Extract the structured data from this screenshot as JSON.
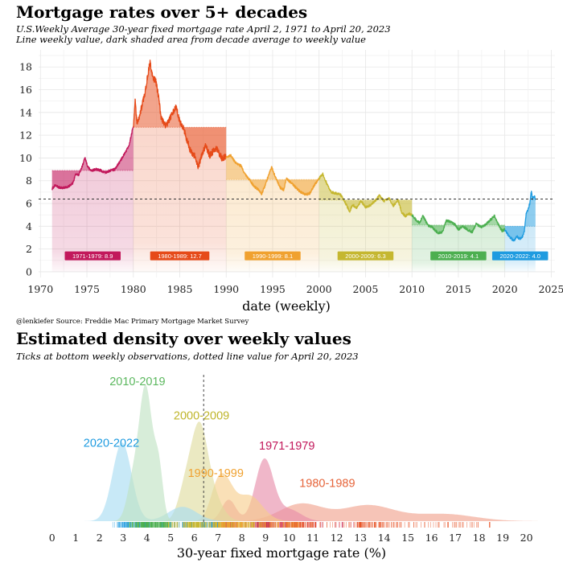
{
  "chart_data": [
    {
      "type": "area",
      "title": "Mortgage rates over 5+ decades",
      "subtitle_1": "U.S.Weekly Average 30-year fixed mortgage rate April 2, 1971 to April 20, 2023",
      "subtitle_2": "Line weekly value, dark shaded area from decade average to weekly value",
      "xlabel": "date (weekly)",
      "ylabel": "",
      "xlim": [
        1969.8,
        2025.4
      ],
      "ylim": [
        -0.5,
        19.5
      ],
      "x_ticks": [
        "1970",
        "1975",
        "1980",
        "1985",
        "1990",
        "1995",
        "2000",
        "2005",
        "2010",
        "2015",
        "2020",
        "2025"
      ],
      "y_ticks": [
        "0",
        "2",
        "4",
        "6",
        "8",
        "10",
        "12",
        "14",
        "16",
        "18"
      ],
      "reference_line": 6.39,
      "caption": "@lenkiefer Source: Freddie Mac Primary Mortgage Market Survey",
      "series": [
        {
          "name": "1971-1979",
          "label": "1971-1979:  8.9",
          "start": 1971.25,
          "end": 1980.0,
          "average": 8.9,
          "color": "#c2185b",
          "points": [
            [
              1971.25,
              7.3
            ],
            [
              1971.6,
              7.6
            ],
            [
              1972.0,
              7.4
            ],
            [
              1972.5,
              7.4
            ],
            [
              1973.0,
              7.45
            ],
            [
              1973.5,
              7.8
            ],
            [
              1973.8,
              8.6
            ],
            [
              1974.1,
              8.5
            ],
            [
              1974.5,
              9.3
            ],
            [
              1974.8,
              10.0
            ],
            [
              1975.1,
              9.2
            ],
            [
              1975.5,
              8.9
            ],
            [
              1976.0,
              9.0
            ],
            [
              1976.5,
              8.9
            ],
            [
              1977.0,
              8.7
            ],
            [
              1977.5,
              8.9
            ],
            [
              1978.0,
              9.0
            ],
            [
              1978.5,
              9.6
            ],
            [
              1979.0,
              10.3
            ],
            [
              1979.5,
              11.0
            ],
            [
              1980.0,
              12.8
            ]
          ]
        },
        {
          "name": "1980-1989",
          "label": "1980-1989:  12.7",
          "start": 1980.0,
          "end": 1990.0,
          "average": 12.7,
          "color": "#e64a19",
          "points": [
            [
              1980.0,
              12.8
            ],
            [
              1980.2,
              15.0
            ],
            [
              1980.4,
              13.0
            ],
            [
              1980.6,
              13.5
            ],
            [
              1980.9,
              14.5
            ],
            [
              1981.2,
              15.5
            ],
            [
              1981.6,
              17.5
            ],
            [
              1981.8,
              18.45
            ],
            [
              1982.1,
              17.0
            ],
            [
              1982.4,
              16.8
            ],
            [
              1982.7,
              15.5
            ],
            [
              1983.0,
              13.5
            ],
            [
              1983.5,
              12.8
            ],
            [
              1983.9,
              13.4
            ],
            [
              1984.3,
              14.0
            ],
            [
              1984.6,
              14.6
            ],
            [
              1985.0,
              13.2
            ],
            [
              1985.4,
              12.6
            ],
            [
              1985.8,
              11.5
            ],
            [
              1986.2,
              10.5
            ],
            [
              1986.6,
              10.2
            ],
            [
              1987.0,
              9.2
            ],
            [
              1987.4,
              10.4
            ],
            [
              1987.8,
              11.1
            ],
            [
              1988.2,
              10.2
            ],
            [
              1988.6,
              10.6
            ],
            [
              1989.0,
              10.8
            ],
            [
              1989.5,
              10.0
            ],
            [
              1990.0,
              10.1
            ]
          ]
        },
        {
          "name": "1990-1999",
          "label": "1990-1999:  8.1",
          "start": 1990.0,
          "end": 2000.0,
          "average": 8.1,
          "color": "#f0a12f",
          "points": [
            [
              1990.0,
              10.1
            ],
            [
              1990.5,
              10.2
            ],
            [
              1991.0,
              9.6
            ],
            [
              1991.6,
              9.3
            ],
            [
              1992.0,
              8.6
            ],
            [
              1992.5,
              8.1
            ],
            [
              1993.0,
              7.5
            ],
            [
              1993.5,
              7.2
            ],
            [
              1993.8,
              6.8
            ],
            [
              1994.2,
              7.6
            ],
            [
              1994.6,
              8.6
            ],
            [
              1994.9,
              9.2
            ],
            [
              1995.3,
              8.3
            ],
            [
              1995.8,
              7.4
            ],
            [
              1996.2,
              7.2
            ],
            [
              1996.5,
              8.2
            ],
            [
              1997.0,
              7.8
            ],
            [
              1997.5,
              7.4
            ],
            [
              1998.0,
              7.0
            ],
            [
              1998.6,
              6.8
            ],
            [
              1999.0,
              6.9
            ],
            [
              1999.5,
              7.6
            ],
            [
              2000.0,
              8.2
            ]
          ]
        },
        {
          "name": "2000-2009",
          "label": "2000-2009:  6.3",
          "start": 2000.0,
          "end": 2010.0,
          "average": 6.3,
          "color": "#c5b730",
          "points": [
            [
              2000.0,
              8.2
            ],
            [
              2000.4,
              8.6
            ],
            [
              2000.8,
              7.8
            ],
            [
              2001.3,
              7.0
            ],
            [
              2001.8,
              6.9
            ],
            [
              2002.3,
              6.8
            ],
            [
              2002.8,
              6.1
            ],
            [
              2003.3,
              5.3
            ],
            [
              2003.6,
              5.9
            ],
            [
              2004.0,
              5.6
            ],
            [
              2004.5,
              6.2
            ],
            [
              2005.0,
              5.7
            ],
            [
              2005.5,
              5.8
            ],
            [
              2006.0,
              6.2
            ],
            [
              2006.5,
              6.7
            ],
            [
              2007.0,
              6.2
            ],
            [
              2007.5,
              6.5
            ],
            [
              2008.0,
              5.8
            ],
            [
              2008.5,
              6.3
            ],
            [
              2008.9,
              5.2
            ],
            [
              2009.3,
              4.9
            ],
            [
              2009.7,
              5.1
            ],
            [
              2010.0,
              5.0
            ]
          ]
        },
        {
          "name": "2010-2019",
          "label": "2010-2019:  4.1",
          "start": 2010.0,
          "end": 2020.0,
          "average": 4.1,
          "color": "#4caf50",
          "points": [
            [
              2010.0,
              5.0
            ],
            [
              2010.5,
              4.5
            ],
            [
              2010.8,
              4.3
            ],
            [
              2011.2,
              4.9
            ],
            [
              2011.7,
              4.1
            ],
            [
              2012.2,
              3.9
            ],
            [
              2012.8,
              3.4
            ],
            [
              2013.3,
              3.5
            ],
            [
              2013.7,
              4.5
            ],
            [
              2014.2,
              4.4
            ],
            [
              2014.7,
              4.1
            ],
            [
              2015.0,
              3.7
            ],
            [
              2015.5,
              4.0
            ],
            [
              2016.0,
              3.7
            ],
            [
              2016.5,
              3.5
            ],
            [
              2016.9,
              4.2
            ],
            [
              2017.5,
              3.9
            ],
            [
              2018.0,
              4.2
            ],
            [
              2018.5,
              4.6
            ],
            [
              2018.9,
              4.9
            ],
            [
              2019.4,
              4.0
            ],
            [
              2019.7,
              3.6
            ],
            [
              2020.0,
              3.7
            ]
          ]
        },
        {
          "name": "2020-2022",
          "label": "2020-2022:  4.0",
          "start": 2020.0,
          "end": 2023.3,
          "average": 4.0,
          "color": "#1e9be0",
          "points": [
            [
              2020.0,
              3.7
            ],
            [
              2020.3,
              3.3
            ],
            [
              2020.6,
              3.0
            ],
            [
              2021.0,
              2.7
            ],
            [
              2021.3,
              3.1
            ],
            [
              2021.6,
              2.9
            ],
            [
              2021.9,
              3.1
            ],
            [
              2022.1,
              3.5
            ],
            [
              2022.3,
              5.1
            ],
            [
              2022.5,
              5.5
            ],
            [
              2022.7,
              6.0
            ],
            [
              2022.85,
              7.08
            ],
            [
              2023.0,
              6.4
            ],
            [
              2023.15,
              6.7
            ],
            [
              2023.3,
              6.39
            ]
          ]
        }
      ]
    },
    {
      "type": "area",
      "title": "Estimated density over weekly values",
      "subtitle": "Ticks at bottom weekly observations, dotted line value for April 20, 2023",
      "xlabel": "30-year fixed mortgage rate (%)",
      "xlim": [
        -0.5,
        21.2
      ],
      "x_ticks": [
        "0",
        "1",
        "2",
        "3",
        "4",
        "5",
        "6",
        "7",
        "8",
        "9",
        "10",
        "11",
        "12",
        "13",
        "14",
        "15",
        "16",
        "17",
        "18",
        "19",
        "20"
      ],
      "reference_line": 6.39,
      "series": [
        {
          "name": "1980-1989",
          "color": "#f0a08a",
          "peaks": [
            [
              10.5,
              0.12,
              0.9
            ],
            [
              13.3,
              0.11,
              1.1
            ],
            [
              16.5,
              0.05,
              1.3
            ]
          ],
          "label_at": [
            11.6,
            0.24
          ]
        },
        {
          "name": "1971-1979",
          "color": "#e78aa8",
          "peaks": [
            [
              8.95,
              0.43,
              0.38
            ],
            [
              7.45,
              0.15,
              0.3
            ],
            [
              10.0,
              0.08,
              0.5
            ]
          ],
          "label_at": [
            9.9,
            0.5
          ]
        },
        {
          "name": "1990-1999",
          "color": "#f7cd8a",
          "peaks": [
            [
              7.3,
              0.23,
              0.35
            ],
            [
              8.3,
              0.18,
              0.55
            ],
            [
              6.9,
              0.15,
              0.3
            ]
          ],
          "label_at": [
            6.9,
            0.31
          ]
        },
        {
          "name": "2000-2009",
          "color": "#dedc9c",
          "peaks": [
            [
              6.2,
              0.62,
              0.35
            ],
            [
              5.6,
              0.2,
              0.3
            ],
            [
              6.8,
              0.15,
              0.4
            ]
          ],
          "label_at": [
            6.3,
            0.71
          ]
        },
        {
          "name": "2020-2022",
          "color": "#a6dcf2",
          "peaks": [
            [
              2.95,
              0.55,
              0.4
            ],
            [
              5.5,
              0.1,
              0.6
            ]
          ],
          "label_at": [
            2.5,
            0.52
          ]
        },
        {
          "name": "2010-2019",
          "color": "#bfe2c2",
          "peaks": [
            [
              3.95,
              0.93,
              0.28
            ],
            [
              4.5,
              0.34,
              0.18
            ],
            [
              3.4,
              0.25,
              0.25
            ]
          ],
          "label_at": [
            3.6,
            0.95
          ]
        }
      ]
    }
  ]
}
